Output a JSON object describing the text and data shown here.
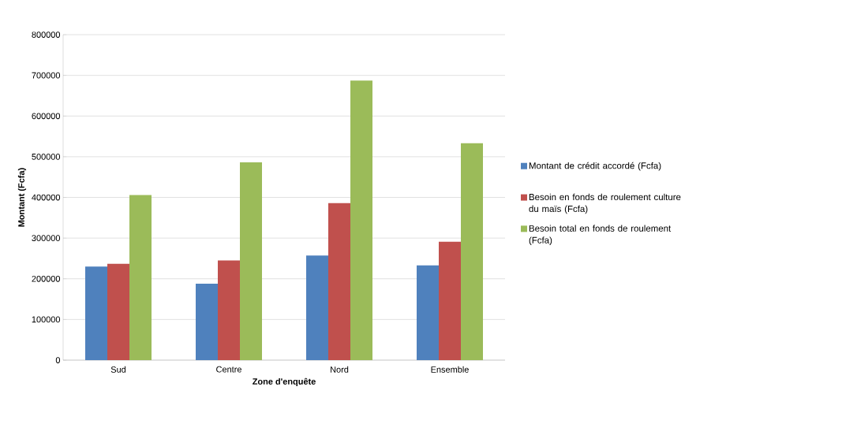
{
  "chart_data": {
    "type": "bar",
    "xlabel": "Zone d'enquête",
    "ylabel": "Montant (Fcfa)",
    "categories": [
      "Sud",
      "Centre",
      "Nord",
      "Ensemble"
    ],
    "series": [
      {
        "name": "Montant de crédit accordé (Fcfa)",
        "color": "#4f81bd",
        "values": [
          230000,
          188000,
          257000,
          233000
        ]
      },
      {
        "name": "Besoin en fonds de roulement culture du maïs (Fcfa)",
        "color": "#c0504d",
        "values": [
          237000,
          245000,
          386000,
          291000
        ]
      },
      {
        "name": "Besoin total en fonds de roulement (Fcfa)",
        "color": "#9bbb59",
        "values": [
          406000,
          486000,
          687000,
          533000
        ]
      }
    ],
    "ylim": [
      0,
      800000
    ],
    "yticks": [
      0,
      100000,
      200000,
      300000,
      400000,
      500000,
      600000,
      700000,
      800000
    ],
    "grid": "y",
    "legend": "right"
  }
}
